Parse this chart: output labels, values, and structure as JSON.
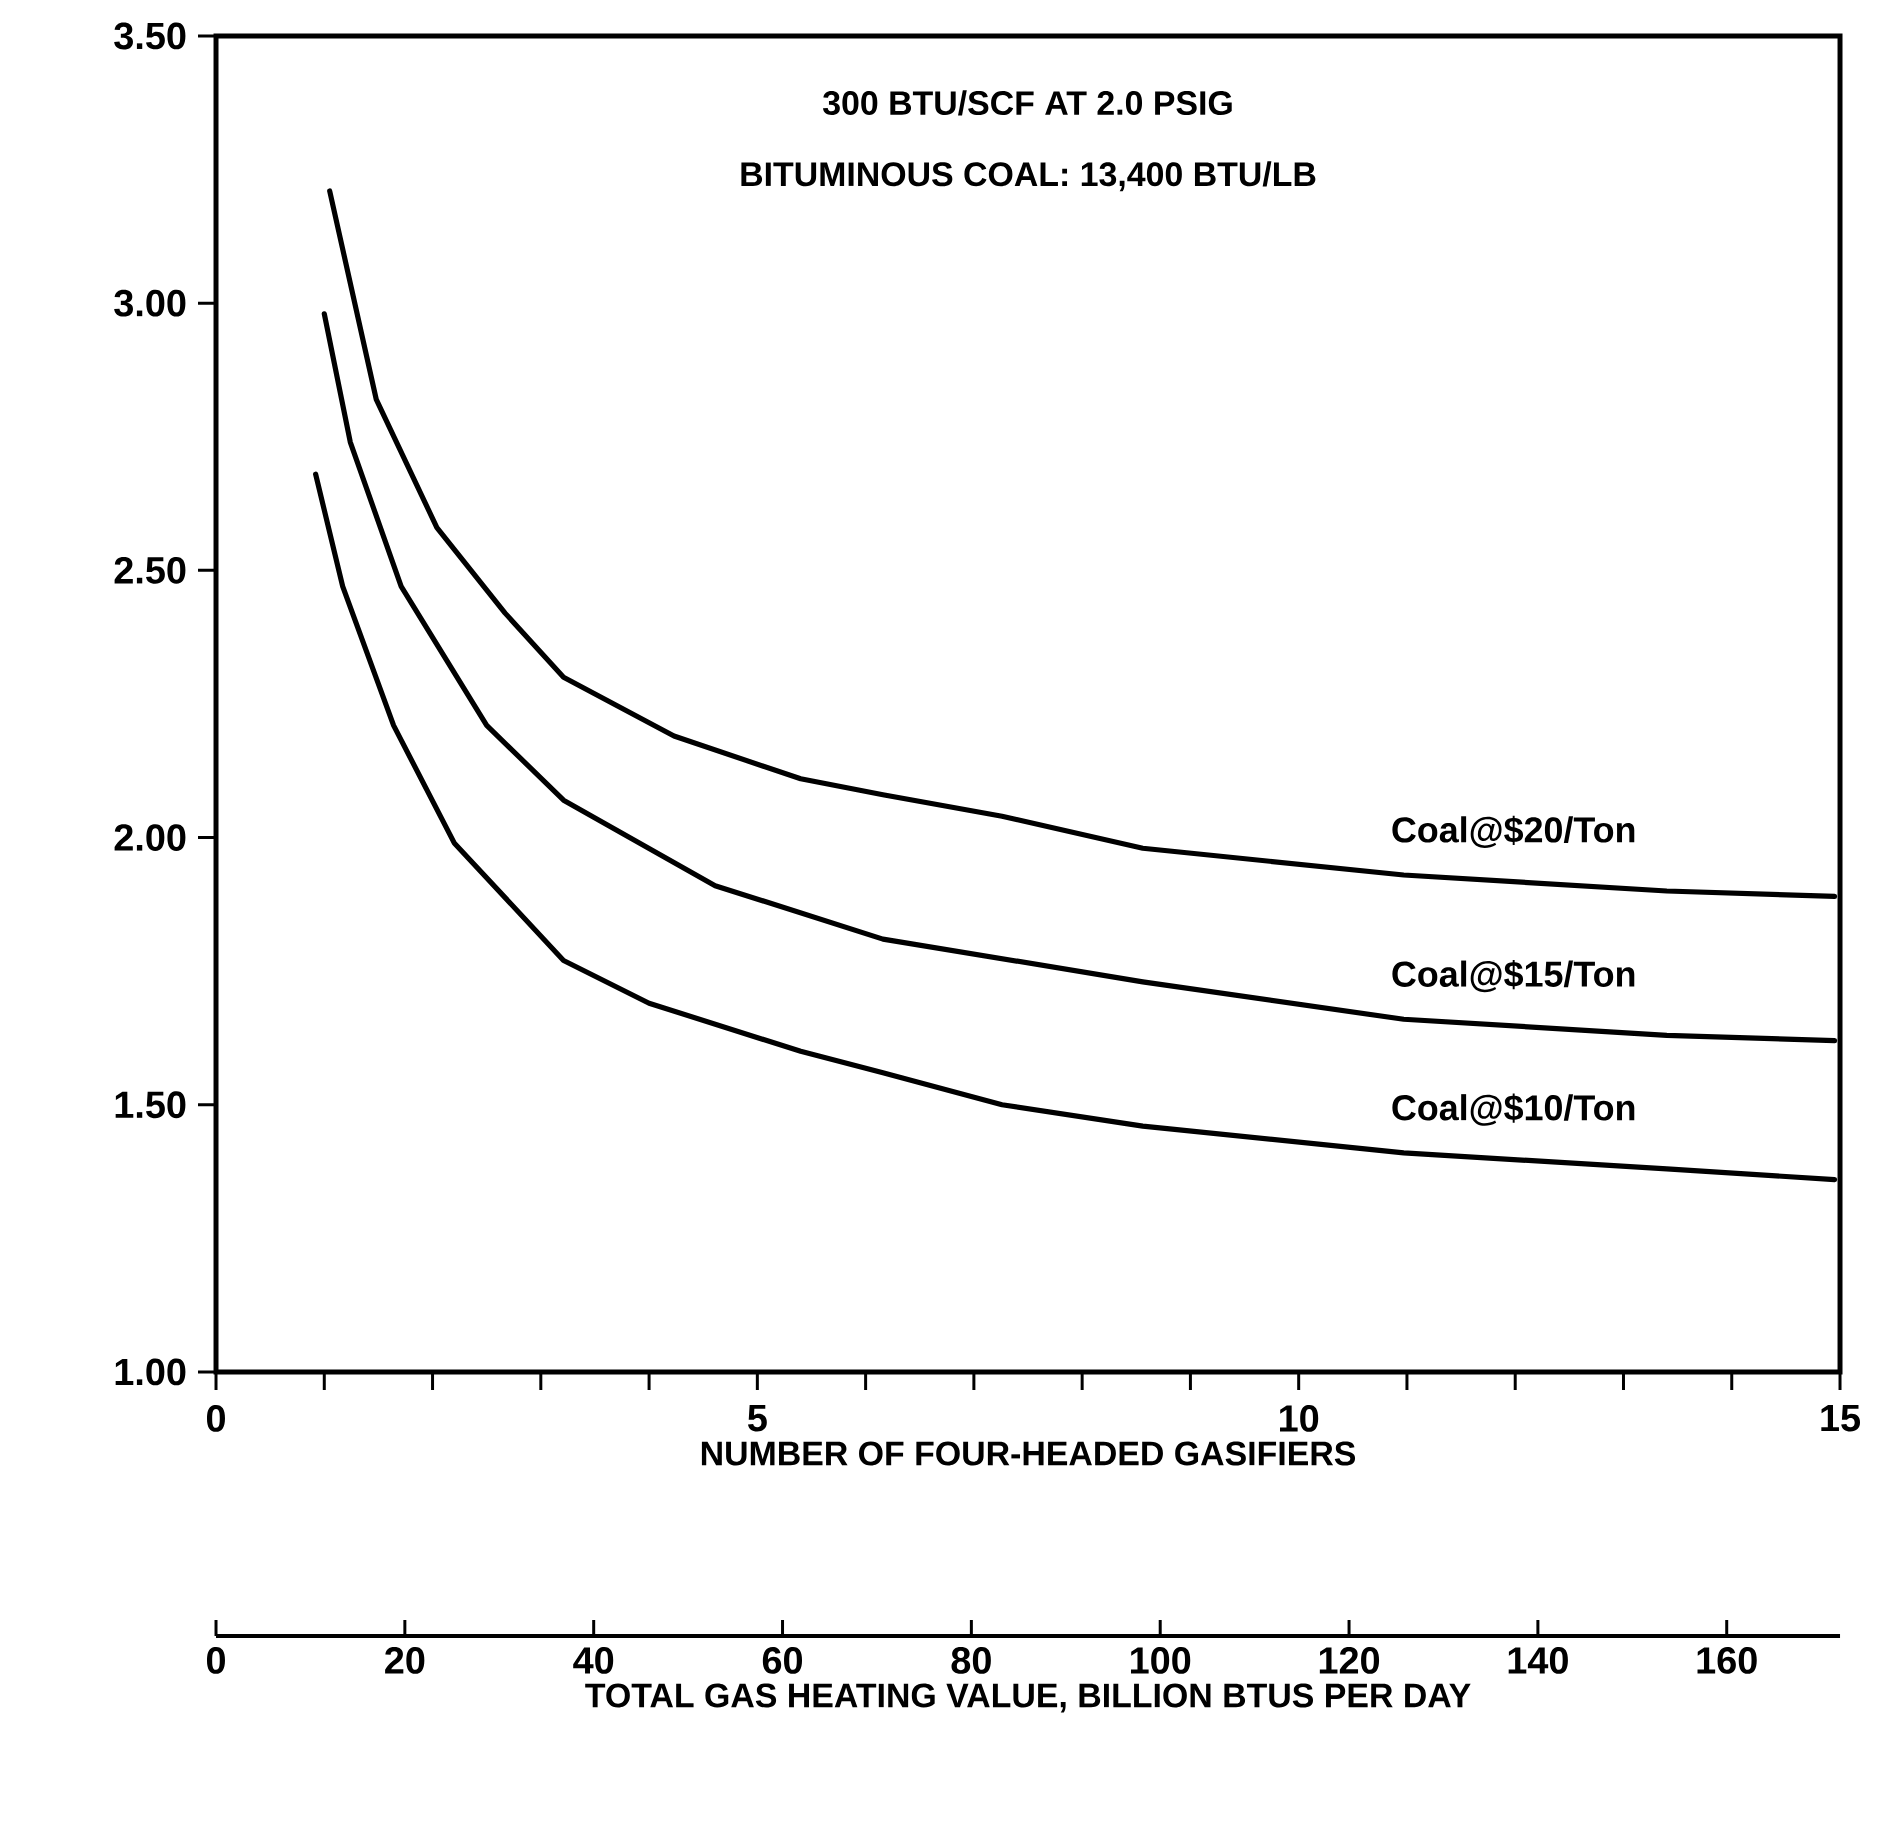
{
  "chart_data": {
    "type": "line",
    "annotations": [
      "300 BTU/SCF AT 2.0 PSIG",
      "BITUMINOUS COAL:  13,400 BTU/LB"
    ],
    "xlabel": "NUMBER OF FOUR-HEADED GASIFIERS",
    "x2label": "TOTAL GAS HEATING VALUE, BILLION BTUS PER DAY",
    "xlim": [
      0,
      15
    ],
    "xticks": [
      0,
      {
        "value": 1,
        "label": null
      },
      {
        "value": 2,
        "label": null
      },
      {
        "value": 3,
        "label": null
      },
      {
        "value": 4,
        "label": null
      },
      5,
      {
        "value": 6,
        "label": null
      },
      {
        "value": 7,
        "label": null
      },
      {
        "value": 8,
        "label": null
      },
      {
        "value": 9,
        "label": null
      },
      10,
      {
        "value": 11,
        "label": null
      },
      {
        "value": 12,
        "label": null
      },
      {
        "value": 13,
        "label": null
      },
      {
        "value": 14,
        "label": null
      },
      15
    ],
    "ylim": [
      1.0,
      3.5
    ],
    "yticks": [
      {
        "value": 1.0,
        "label": "1.00"
      },
      {
        "value": 1.5,
        "label": "1.50"
      },
      {
        "value": 2.0,
        "label": "2.00"
      },
      {
        "value": 2.5,
        "label": "2.50"
      },
      {
        "value": 3.0,
        "label": "3.00"
      },
      {
        "value": 3.5,
        "label": "3.50"
      }
    ],
    "x2lim": [
      0,
      172
    ],
    "x2ticks": [
      0,
      20,
      40,
      60,
      80,
      100,
      120,
      140,
      160
    ],
    "grid": false,
    "legend": false,
    "marker": "none",
    "line_style": "solid",
    "series": [
      {
        "name": "Coal@$20/Ton",
        "color": "#000000",
        "x": [
          1.05,
          1.48,
          2.04,
          2.67,
          3.21,
          4.23,
          5.4,
          6.16,
          7.26,
          8.56,
          10.97,
          13.4,
          14.95
        ],
        "values": [
          3.21,
          2.82,
          2.58,
          2.42,
          2.3,
          2.19,
          2.11,
          2.08,
          2.04,
          1.98,
          1.93,
          1.9,
          1.89
        ]
      },
      {
        "name": "Coal@$15/Ton",
        "color": "#000000",
        "x": [
          1.0,
          1.24,
          1.71,
          2.5,
          3.21,
          4.61,
          6.16,
          8.56,
          10.97,
          13.4,
          14.95
        ],
        "values": [
          2.98,
          2.74,
          2.47,
          2.21,
          2.07,
          1.91,
          1.81,
          1.73,
          1.66,
          1.63,
          1.62
        ]
      },
      {
        "name": "Coal@$10/Ton",
        "color": "#000000",
        "x": [
          0.92,
          1.17,
          1.64,
          2.2,
          3.21,
          4.0,
          5.4,
          6.16,
          7.26,
          8.56,
          10.97,
          13.4,
          14.95
        ],
        "values": [
          2.68,
          2.47,
          2.21,
          1.99,
          1.77,
          1.69,
          1.6,
          1.56,
          1.5,
          1.46,
          1.41,
          1.38,
          1.36
        ]
      }
    ]
  }
}
